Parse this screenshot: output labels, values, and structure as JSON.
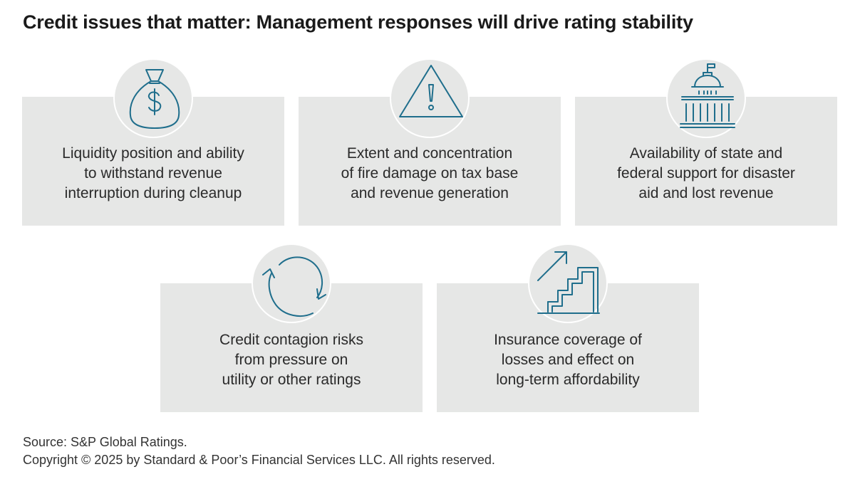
{
  "title": "Credit issues that matter: Management responses will drive rating stability",
  "colors": {
    "card_background": "#e6e7e6",
    "icon_stroke": "#1f6e8c",
    "text": "#2a2a2a"
  },
  "cards": [
    {
      "icon": "money-bag-icon",
      "lines": [
        "Liquidity position and ability",
        "to withstand revenue",
        "interruption during cleanup"
      ]
    },
    {
      "icon": "warning-triangle-icon",
      "lines": [
        "Extent and concentration",
        "of fire damage on tax base",
        "and revenue generation"
      ]
    },
    {
      "icon": "capitol-building-icon",
      "lines": [
        "Availability of state and",
        "federal support for disaster",
        "aid and lost revenue"
      ]
    },
    {
      "icon": "cycle-arrows-icon",
      "lines": [
        "Credit contagion risks",
        "from pressure on",
        "utility or other ratings"
      ]
    },
    {
      "icon": "stairs-arrow-icon",
      "lines": [
        "Insurance coverage of",
        "losses and effect on",
        "long-term affordability"
      ]
    }
  ],
  "footer": {
    "source": "Source: S&P Global Ratings.",
    "copyright": "Copyright © 2025 by Standard & Poor’s Financial Services LLC. All rights reserved."
  }
}
